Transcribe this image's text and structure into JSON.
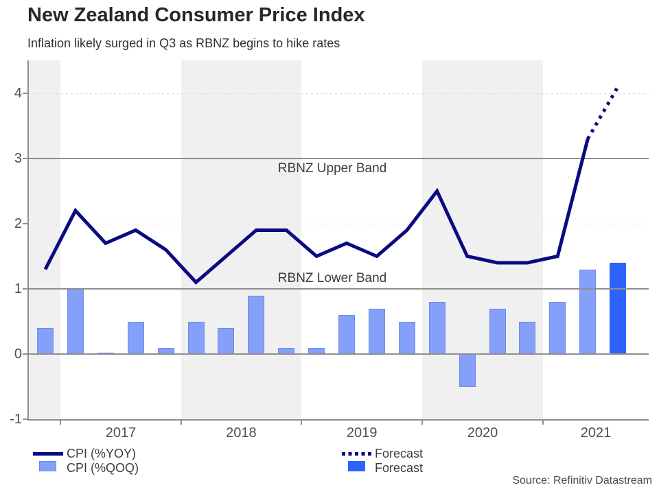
{
  "header": {
    "title": "New Zealand Consumer Price Index",
    "subtitle": "Inflation likely surged in Q3 as RBNZ begins to hike rates"
  },
  "footer": {
    "source": "Source: Refinitiv Datastream"
  },
  "legend": [
    {
      "swatch": "line-solid",
      "label": "CPI (%YOY)"
    },
    {
      "swatch": "bar-light",
      "label": "CPI (%QOQ)"
    },
    {
      "swatch": "line-dotted",
      "label": "Forecast"
    },
    {
      "swatch": "bar-dark",
      "label": "Forecast"
    }
  ],
  "colors": {
    "line_navy": "#0a0a82",
    "bar_light": "#84a0f9",
    "bar_light_border": "#6d89ea",
    "bar_dark": "#2d63fa",
    "reference_gray": "#8f8f8f",
    "grid_dotted": "#d8d8d8",
    "year_shade": "#f0f0f0"
  },
  "chart_data": {
    "type": "line+bar",
    "x": [
      "2016 Q4",
      "2017 Q1",
      "2017 Q2",
      "2017 Q3",
      "2017 Q4",
      "2018 Q1",
      "2018 Q2",
      "2018 Q3",
      "2018 Q4",
      "2019 Q1",
      "2019 Q2",
      "2019 Q3",
      "2019 Q4",
      "2020 Q1",
      "2020 Q2",
      "2020 Q3",
      "2020 Q4",
      "2021 Q1",
      "2021 Q2",
      "2021 Q3"
    ],
    "year_labels": [
      "2017",
      "2018",
      "2019",
      "2020",
      "2021"
    ],
    "yticks": [
      4,
      3,
      2,
      1,
      0,
      -1
    ],
    "ylim": [
      -1,
      4.5
    ],
    "grid_dotted_at": [
      4,
      2
    ],
    "series": [
      {
        "name": "CPI (%YOY)",
        "type": "line",
        "style": "solid",
        "values": [
          1.3,
          2.2,
          1.7,
          1.9,
          1.6,
          1.1,
          1.5,
          1.9,
          1.9,
          1.5,
          1.7,
          1.5,
          1.9,
          2.5,
          1.5,
          1.4,
          1.4,
          1.5,
          3.3,
          null
        ]
      },
      {
        "name": "Forecast",
        "type": "line",
        "style": "dotted",
        "values": [
          null,
          null,
          null,
          null,
          null,
          null,
          null,
          null,
          null,
          null,
          null,
          null,
          null,
          null,
          null,
          null,
          null,
          null,
          3.3,
          4.1
        ]
      },
      {
        "name": "CPI (%QOQ)",
        "type": "bar",
        "style": "light",
        "values": [
          0.4,
          1.0,
          0.0,
          0.5,
          0.1,
          0.5,
          0.4,
          0.9,
          0.1,
          0.1,
          0.6,
          0.7,
          0.5,
          0.8,
          -0.5,
          0.7,
          0.5,
          0.8,
          1.3,
          null
        ]
      },
      {
        "name": "Forecast",
        "type": "bar",
        "style": "dark",
        "values": [
          null,
          null,
          null,
          null,
          null,
          null,
          null,
          null,
          null,
          null,
          null,
          null,
          null,
          null,
          null,
          null,
          null,
          null,
          null,
          1.4
        ]
      }
    ],
    "reference_lines": [
      {
        "label": "RBNZ Upper Band",
        "value": 3
      },
      {
        "label": "RBNZ Lower Band",
        "value": 1
      },
      {
        "label": "",
        "value": 0
      }
    ],
    "shaded_years": [
      "2016 (partial)",
      "2018",
      "2020"
    ],
    "legend_position": "bottom"
  }
}
